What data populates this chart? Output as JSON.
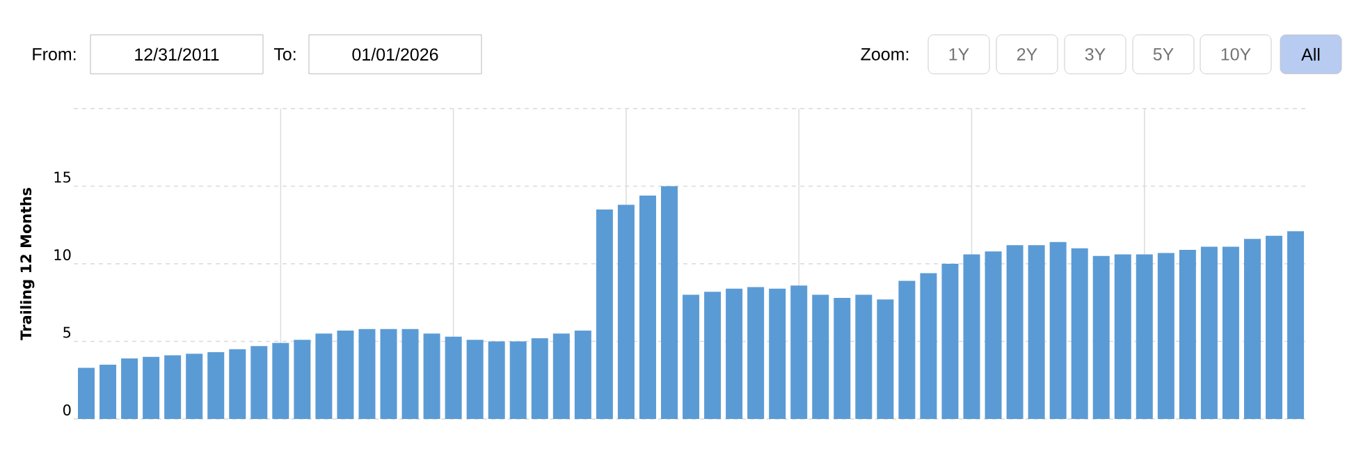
{
  "chart_data": {
    "type": "bar",
    "ylabel": "Trailing 12 Months",
    "categories": [
      null,
      null,
      null,
      null,
      null,
      null,
      null,
      null,
      null,
      null,
      null,
      null,
      null,
      null,
      null,
      null,
      null,
      null,
      null,
      null,
      null,
      null,
      null,
      null,
      null,
      null,
      null,
      null,
      null,
      null,
      null,
      null,
      null,
      null,
      null,
      null,
      null,
      null,
      null,
      null,
      null,
      null,
      null,
      null,
      null,
      null,
      null,
      null,
      null,
      null,
      null,
      null,
      null,
      null,
      null,
      null,
      null
    ],
    "values": [
      3.3,
      3.5,
      3.9,
      4.0,
      4.1,
      4.2,
      4.3,
      4.5,
      4.7,
      4.9,
      5.1,
      5.5,
      5.7,
      5.8,
      5.8,
      5.8,
      5.5,
      5.3,
      5.1,
      5.0,
      5.0,
      5.2,
      5.5,
      5.7,
      13.5,
      13.8,
      14.4,
      15.0,
      8.0,
      8.2,
      8.4,
      8.5,
      8.4,
      8.6,
      8.0,
      7.8,
      8.0,
      7.7,
      8.9,
      9.4,
      10.0,
      10.6,
      10.8,
      11.2,
      11.2,
      11.4,
      11.0,
      10.5,
      10.6,
      10.6,
      10.7,
      10.9,
      11.1,
      11.1,
      11.6,
      11.8,
      12.1
    ],
    "color": "#5b9bd5",
    "ylim": [
      0,
      20
    ],
    "yticks": [
      0,
      5,
      10,
      15,
      {
        "value": 20,
        "label": null
      }
    ],
    "grid": true,
    "annotations": [
      "From:",
      "12/31/2011",
      "To:",
      "01/01/2026",
      "Zoom:",
      "1Y",
      "2Y",
      "3Y",
      "5Y",
      "10Y",
      "All"
    ]
  }
}
